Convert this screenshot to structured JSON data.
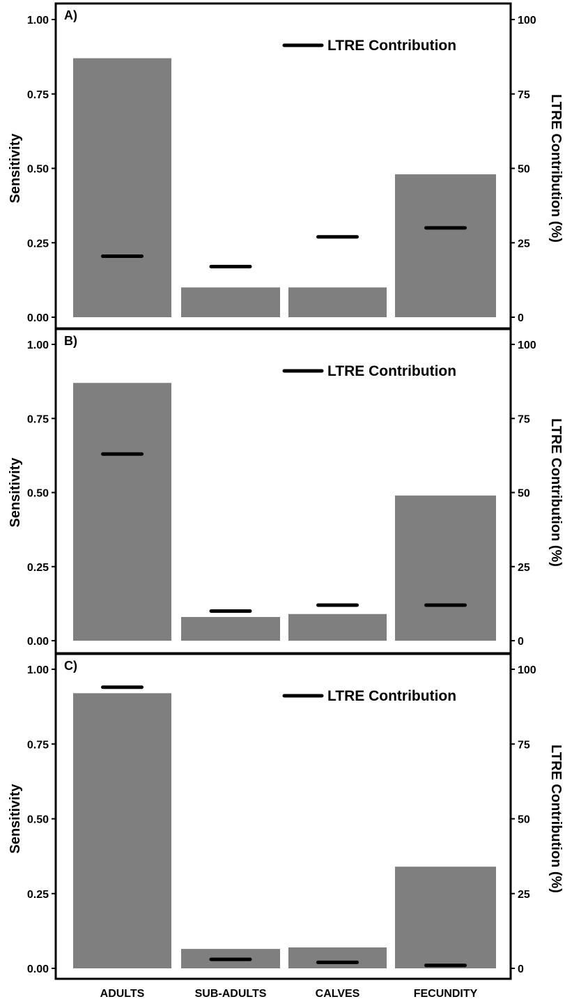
{
  "figure": {
    "left_axis_label": "Sensitivity",
    "right_axis_label": "LTRE Contribution (%)",
    "legend_label": "LTRE Contribution",
    "categories": [
      "ADULTS",
      "SUB-ADULTS",
      "CALVES",
      "FECUNDITY"
    ],
    "left_ticks": [
      "1.00",
      "0.75",
      "0.50",
      "0.25",
      "0.00"
    ],
    "right_ticks": [
      "100",
      "75",
      "50",
      "25",
      "0"
    ]
  },
  "chart_data": [
    {
      "type": "bar",
      "panel": "A)",
      "categories": [
        "ADULTS",
        "SUB-ADULTS",
        "CALVES",
        "FECUNDITY"
      ],
      "series": [
        {
          "name": "Sensitivity",
          "axis": "left",
          "values": [
            0.87,
            0.1,
            0.1,
            0.48
          ]
        },
        {
          "name": "LTRE Contribution",
          "axis": "right",
          "mark": "dash",
          "values": [
            20.5,
            17,
            27,
            30
          ]
        }
      ],
      "ylabel": "Sensitivity",
      "ylim": [
        0,
        1
      ],
      "y2label": "LTRE Contribution (%)",
      "y2lim": [
        0,
        100
      ],
      "legend": "top-right"
    },
    {
      "type": "bar",
      "panel": "B)",
      "categories": [
        "ADULTS",
        "SUB-ADULTS",
        "CALVES",
        "FECUNDITY"
      ],
      "series": [
        {
          "name": "Sensitivity",
          "axis": "left",
          "values": [
            0.87,
            0.08,
            0.09,
            0.49
          ]
        },
        {
          "name": "LTRE Contribution",
          "axis": "right",
          "mark": "dash",
          "values": [
            63,
            10,
            12,
            12
          ]
        }
      ],
      "ylabel": "Sensitivity",
      "ylim": [
        0,
        1
      ],
      "y2label": "LTRE Contribution (%)",
      "y2lim": [
        0,
        100
      ],
      "legend": "top-right"
    },
    {
      "type": "bar",
      "panel": "C)",
      "categories": [
        "ADULTS",
        "SUB-ADULTS",
        "CALVES",
        "FECUNDITY"
      ],
      "series": [
        {
          "name": "Sensitivity",
          "axis": "left",
          "values": [
            0.92,
            0.065,
            0.07,
            0.34
          ]
        },
        {
          "name": "LTRE Contribution",
          "axis": "right",
          "mark": "dash",
          "values": [
            94,
            3,
            2,
            1
          ]
        }
      ],
      "ylabel": "Sensitivity",
      "ylim": [
        0,
        1
      ],
      "y2label": "LTRE Contribution (%)",
      "y2lim": [
        0,
        100
      ],
      "legend": "top-right"
    }
  ]
}
